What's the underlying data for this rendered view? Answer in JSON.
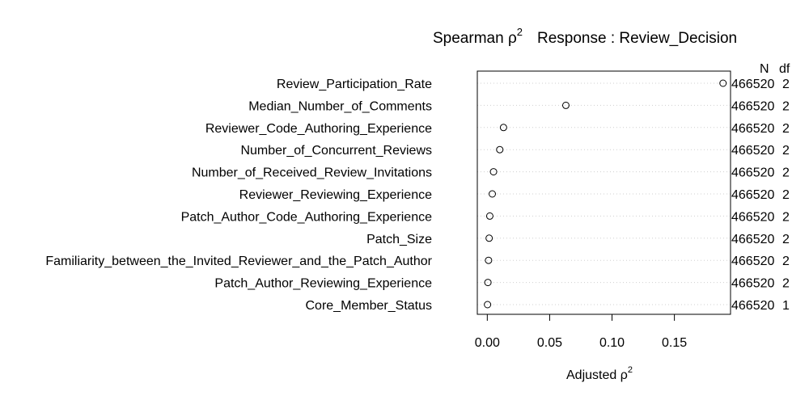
{
  "chart_data": {
    "type": "scatter",
    "title": {
      "left_text": "Spearman ρ",
      "left_sup": "2",
      "right_text": "Response : Review_Decision"
    },
    "xlabel": {
      "text": "Adjusted ρ",
      "sup": "2"
    },
    "ylabel": "",
    "xlim": [
      -0.008,
      0.195
    ],
    "x_ticks": [
      {
        "value": 0.0,
        "label": "0.00"
      },
      {
        "value": 0.05,
        "label": "0.05"
      },
      {
        "value": 0.1,
        "label": "0.10"
      },
      {
        "value": 0.15,
        "label": "0.15"
      }
    ],
    "right_header": {
      "n": "N",
      "df": "df"
    },
    "grid": "dotted horizontal",
    "rows": [
      {
        "label": "Review_Participation_Rate",
        "value": 0.189,
        "n": "466520",
        "df": "2"
      },
      {
        "label": "Median_Number_of_Comments",
        "value": 0.063,
        "n": "466520",
        "df": "2"
      },
      {
        "label": "Reviewer_Code_Authoring_Experience",
        "value": 0.013,
        "n": "466520",
        "df": "2"
      },
      {
        "label": "Number_of_Concurrent_Reviews",
        "value": 0.01,
        "n": "466520",
        "df": "2"
      },
      {
        "label": "Number_of_Received_Review_Invitations",
        "value": 0.005,
        "n": "466520",
        "df": "2"
      },
      {
        "label": "Reviewer_Reviewing_Experience",
        "value": 0.004,
        "n": "466520",
        "df": "2"
      },
      {
        "label": "Patch_Author_Code_Authoring_Experience",
        "value": 0.002,
        "n": "466520",
        "df": "2"
      },
      {
        "label": "Patch_Size",
        "value": 0.0015,
        "n": "466520",
        "df": "2"
      },
      {
        "label": "Familiarity_between_the_Invited_Reviewer_and_the_Patch_Author",
        "value": 0.001,
        "n": "466520",
        "df": "2"
      },
      {
        "label": "Patch_Author_Reviewing_Experience",
        "value": 0.0005,
        "n": "466520",
        "df": "2"
      },
      {
        "label": "Core_Member_Status",
        "value": 0.0002,
        "n": "466520",
        "df": "1"
      }
    ]
  }
}
